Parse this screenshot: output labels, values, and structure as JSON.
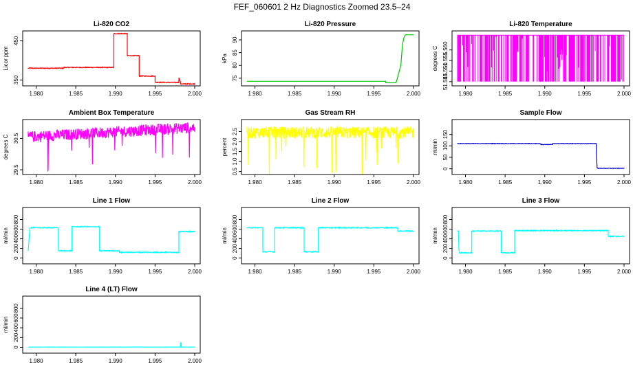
{
  "figure_title": "FEF_060601  2 Hz Diagnostics Zoomed 23.5–24",
  "colors": {
    "red": "#ff0000",
    "green": "#00c800",
    "magenta": "#ff00ff",
    "yellow": "#ffff00",
    "blue": "#0000cc",
    "cyan": "#00ffff"
  },
  "chart_data": [
    {
      "type": "line",
      "title": "Li-820 CO2",
      "xlabel": "",
      "ylabel": "Licor ppm",
      "xlim": [
        1.979,
        2.0
      ],
      "ylim": [
        335,
        475
      ],
      "xticks": [
        1.98,
        1.985,
        1.99,
        1.995,
        2.0
      ],
      "xtick_labels": [
        "1.980",
        "1.985",
        "1.990",
        "1.995",
        "2.000"
      ],
      "yticks": [
        350,
        450
      ],
      "ytick_labels": [
        "350",
        "450"
      ],
      "color": "#ff0000",
      "noise": 1,
      "series": [
        {
          "name": "CO2",
          "x": [
            1.979,
            1.9835,
            1.9835,
            1.9898,
            1.9898,
            1.9915,
            1.9915,
            1.993,
            1.993,
            1.995,
            1.995,
            1.998,
            1.998,
            1.9982,
            1.9982,
            2.0
          ],
          "y": [
            380,
            380,
            382,
            382,
            468,
            468,
            412,
            412,
            360,
            360,
            344,
            344,
            356,
            344,
            340,
            340
          ]
        }
      ]
    },
    {
      "type": "line",
      "title": "Li-820 Pressure",
      "xlabel": "",
      "ylabel": "kPa",
      "xlim": [
        1.979,
        2.0
      ],
      "ylim": [
        72,
        93.5
      ],
      "xticks": [
        1.98,
        1.985,
        1.99,
        1.995,
        2.0
      ],
      "xtick_labels": [
        "1.980",
        "1.985",
        "1.990",
        "1.995",
        "2.000"
      ],
      "yticks": [
        75,
        80,
        85,
        90
      ],
      "ytick_labels": [
        "75",
        "80",
        "85",
        "90"
      ],
      "color": "#00c800",
      "noise": 0,
      "series": [
        {
          "name": "Pressure",
          "x": [
            1.979,
            1.9965,
            1.9965,
            1.9978,
            1.9984,
            1.9986,
            1.9988,
            1.999,
            2.0
          ],
          "y": [
            73.8,
            73.8,
            73.2,
            73.2,
            80,
            88,
            91,
            92,
            92
          ]
        }
      ]
    },
    {
      "type": "line",
      "title": "Li-820 Temperature",
      "xlabel": "",
      "ylabel": "degrees C",
      "xlim": [
        1.979,
        2.0
      ],
      "ylim": [
        51.543,
        51.569
      ],
      "xticks": [
        1.98,
        1.985,
        1.99,
        1.995,
        2.0
      ],
      "xtick_labels": [
        "1.980",
        "1.985",
        "1.990",
        "1.995",
        "2.000"
      ],
      "yticks": [
        51.545,
        51.55,
        51.555,
        51.56
      ],
      "ytick_labels": [
        "51.545",
        "51.550",
        "51.555",
        "51.560"
      ],
      "color": "#ff00ff",
      "noise": 0,
      "series": [
        {
          "name": "Temperature",
          "x": [
            1.979,
            2.0
          ],
          "y": [
            51.567,
            51.567
          ],
          "toggle_low": 51.545
        }
      ]
    },
    {
      "type": "line",
      "title": "Ambient Box Temperature",
      "xlabel": "",
      "ylabel": "degrees C",
      "xlim": [
        1.979,
        2.0
      ],
      "ylim": [
        29.35,
        31.1
      ],
      "xticks": [
        1.98,
        1.985,
        1.99,
        1.995,
        2.0
      ],
      "xtick_labels": [
        "1.980",
        "1.985",
        "1.990",
        "1.995",
        "2.000"
      ],
      "yticks": [
        29.5,
        30.5
      ],
      "ytick_labels": [
        "29.5",
        "30.5"
      ],
      "color": "#ff00ff",
      "noise": 0.18,
      "series": [
        {
          "name": "Ambient",
          "x": [
            1.979,
            2.0
          ],
          "y": [
            30.55,
            30.85
          ]
        }
      ]
    },
    {
      "type": "line",
      "title": "Gas Stream RH",
      "xlabel": "",
      "ylabel": "percent",
      "xlim": [
        1.979,
        2.0
      ],
      "ylim": [
        0.35,
        3.1
      ],
      "xticks": [
        1.98,
        1.985,
        1.99,
        1.995,
        2.0
      ],
      "xtick_labels": [
        "1.980",
        "1.985",
        "1.990",
        "1.995",
        "2.000"
      ],
      "yticks": [
        0.5,
        1.0,
        1.5,
        2.0,
        2.5
      ],
      "ytick_labels": [
        "0.5",
        "1.0",
        "1.5",
        "2.0",
        "2.5"
      ],
      "color": "#ffff00",
      "noise": 0.3,
      "series": [
        {
          "name": "RH",
          "x": [
            1.979,
            2.0
          ],
          "y": [
            2.45,
            2.45
          ]
        }
      ]
    },
    {
      "type": "line",
      "title": "Sample Flow",
      "xlabel": "",
      "ylabel": "ml/min",
      "xlim": [
        1.979,
        2.0
      ],
      "ylim": [
        -25,
        215
      ],
      "xticks": [
        1.98,
        1.985,
        1.99,
        1.995,
        2.0
      ],
      "xtick_labels": [
        "1.980",
        "1.985",
        "1.990",
        "1.995",
        "2.000"
      ],
      "yticks": [
        0,
        50,
        100,
        150
      ],
      "ytick_labels": [
        "0",
        "50",
        "100",
        "150"
      ],
      "color": "#0000cc",
      "noise": 1,
      "series": [
        {
          "name": "Sample Flow",
          "x": [
            1.979,
            1.9895,
            1.9895,
            1.991,
            1.991,
            1.9965,
            1.9965,
            1.9966,
            1.9967,
            2.0
          ],
          "y": [
            110,
            110,
            106,
            106,
            110,
            110,
            80,
            5,
            2,
            2
          ]
        }
      ]
    },
    {
      "type": "line",
      "title": "Line 1 Flow",
      "xlabel": "",
      "ylabel": "ml/min",
      "xlim": [
        1.979,
        2.0
      ],
      "ylim": [
        -120,
        1050
      ],
      "xticks": [
        1.98,
        1.985,
        1.99,
        1.995,
        2.0
      ],
      "xtick_labels": [
        "1.980",
        "1.985",
        "1.990",
        "1.995",
        "2.000"
      ],
      "yticks": [
        0,
        200,
        400,
        600,
        800
      ],
      "ytick_labels": [
        "0",
        "200",
        "400",
        "600",
        "800"
      ],
      "color": "#00ffff",
      "noise": 10,
      "series": [
        {
          "name": "Line 1",
          "x": [
            1.979,
            1.9792,
            1.9828,
            1.9828,
            1.9845,
            1.9845,
            1.988,
            1.988,
            1.9905,
            1.9905,
            1.998,
            1.998,
            2.0
          ],
          "y": [
            150,
            630,
            630,
            150,
            150,
            650,
            650,
            150,
            150,
            120,
            120,
            550,
            550
          ]
        }
      ]
    },
    {
      "type": "line",
      "title": "Line 2 Flow",
      "xlabel": "",
      "ylabel": "ml/min",
      "xlim": [
        1.979,
        2.0
      ],
      "ylim": [
        -120,
        1050
      ],
      "xticks": [
        1.98,
        1.985,
        1.99,
        1.995,
        2.0
      ],
      "xtick_labels": [
        "1.980",
        "1.985",
        "1.990",
        "1.995",
        "2.000"
      ],
      "yticks": [
        0,
        200,
        400,
        600,
        800
      ],
      "ytick_labels": [
        "0",
        "200",
        "400",
        "600",
        "800"
      ],
      "color": "#00ffff",
      "noise": 10,
      "series": [
        {
          "name": "Line 2",
          "x": [
            1.979,
            1.981,
            1.981,
            1.9825,
            1.9825,
            1.9862,
            1.9862,
            1.988,
            1.988,
            1.998,
            1.998,
            2.0
          ],
          "y": [
            630,
            630,
            130,
            130,
            630,
            630,
            130,
            130,
            630,
            630,
            560,
            560
          ]
        }
      ]
    },
    {
      "type": "line",
      "title": "Line 3 Flow",
      "xlabel": "",
      "ylabel": "ml/min",
      "xlim": [
        1.979,
        2.0
      ],
      "ylim": [
        -120,
        1050
      ],
      "xticks": [
        1.98,
        1.985,
        1.99,
        1.995,
        2.0
      ],
      "xtick_labels": [
        "1.980",
        "1.985",
        "1.990",
        "1.995",
        "2.000"
      ],
      "yticks": [
        0,
        200,
        400,
        600,
        800
      ],
      "ytick_labels": [
        "0",
        "200",
        "400",
        "600",
        "800"
      ],
      "color": "#00ffff",
      "noise": 10,
      "series": [
        {
          "name": "Line 3",
          "x": [
            1.979,
            1.9791,
            1.9792,
            1.9808,
            1.9808,
            1.9845,
            1.9845,
            1.9862,
            1.9862,
            1.998,
            1.998,
            2.0
          ],
          "y": [
            560,
            560,
            110,
            110,
            560,
            560,
            110,
            110,
            570,
            570,
            450,
            450
          ]
        }
      ]
    },
    {
      "type": "line",
      "title": "Line 4 (LT) Flow",
      "xlabel": "",
      "ylabel": "ml/min",
      "xlim": [
        1.979,
        2.0
      ],
      "ylim": [
        -120,
        1050
      ],
      "xticks": [
        1.98,
        1.985,
        1.99,
        1.995,
        2.0
      ],
      "xtick_labels": [
        "1.980",
        "1.985",
        "1.990",
        "1.995",
        "2.000"
      ],
      "yticks": [
        0,
        200,
        400,
        600,
        800
      ],
      "ytick_labels": [
        "0",
        "200",
        "400",
        "600",
        "800"
      ],
      "color": "#00ffff",
      "noise": 2,
      "series": [
        {
          "name": "Line 4",
          "x": [
            1.979,
            1.9982,
            1.9982,
            1.9983,
            1.9983,
            2.0
          ],
          "y": [
            5,
            5,
            90,
            90,
            5,
            5
          ]
        }
      ]
    }
  ]
}
